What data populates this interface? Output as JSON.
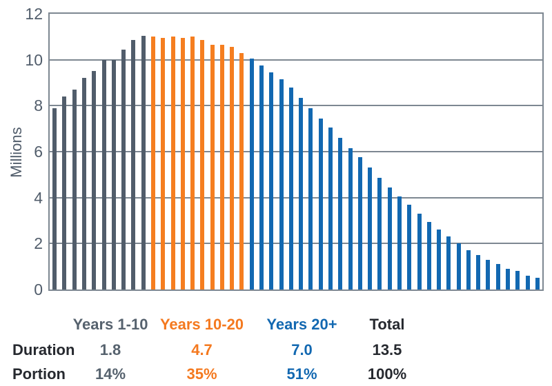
{
  "chart_data": {
    "type": "bar",
    "title": "",
    "xlabel": "",
    "ylabel": "Millions",
    "ylim": [
      0,
      12
    ],
    "yticks": [
      0,
      2,
      4,
      6,
      8,
      10,
      12
    ],
    "grid": "horizontal",
    "legend_position": "none",
    "x_unit": "years (1-50), one bar per year",
    "series": [
      {
        "name": "Years 1-10",
        "color": "#515D6B",
        "values": [
          7.9,
          8.4,
          8.7,
          9.2,
          9.5,
          10.0,
          10.0,
          10.45,
          10.85,
          11.05
        ]
      },
      {
        "name": "Years 10-20",
        "color": "#F57E20",
        "values": [
          11.0,
          10.95,
          11.0,
          10.95,
          11.0,
          10.85,
          10.65,
          10.65,
          10.55,
          10.3
        ]
      },
      {
        "name": "Years 20+",
        "color": "#1268B1",
        "values": [
          10.05,
          9.75,
          9.45,
          9.15,
          8.8,
          8.35,
          7.9,
          7.45,
          7.05,
          6.6,
          6.15,
          5.75,
          5.3,
          4.85,
          4.45,
          4.05,
          3.7,
          3.3,
          2.95,
          2.6,
          2.3,
          2.0,
          1.7,
          1.5,
          1.3,
          1.1,
          0.9,
          0.8,
          0.6,
          0.5
        ]
      }
    ]
  },
  "table": {
    "columns": [
      {
        "label": "Years 1-10",
        "color": "#56626E"
      },
      {
        "label": "Years 10-20",
        "color": "#F4791F"
      },
      {
        "label": "Years 20+",
        "color": "#1268B1"
      },
      {
        "label": "Total",
        "color": "#26292F"
      }
    ],
    "rows": [
      {
        "label": "Duration",
        "values": [
          "1.8",
          "4.7",
          "7.0",
          "13.5"
        ]
      },
      {
        "label": "Portion",
        "values": [
          "14%",
          "35%",
          "51%",
          "100%"
        ]
      }
    ]
  },
  "colors": {
    "grid": "#7D8791",
    "axis_text": "#515D6B",
    "row_label_text": "#26292F",
    "background": "#FFFFFF"
  }
}
